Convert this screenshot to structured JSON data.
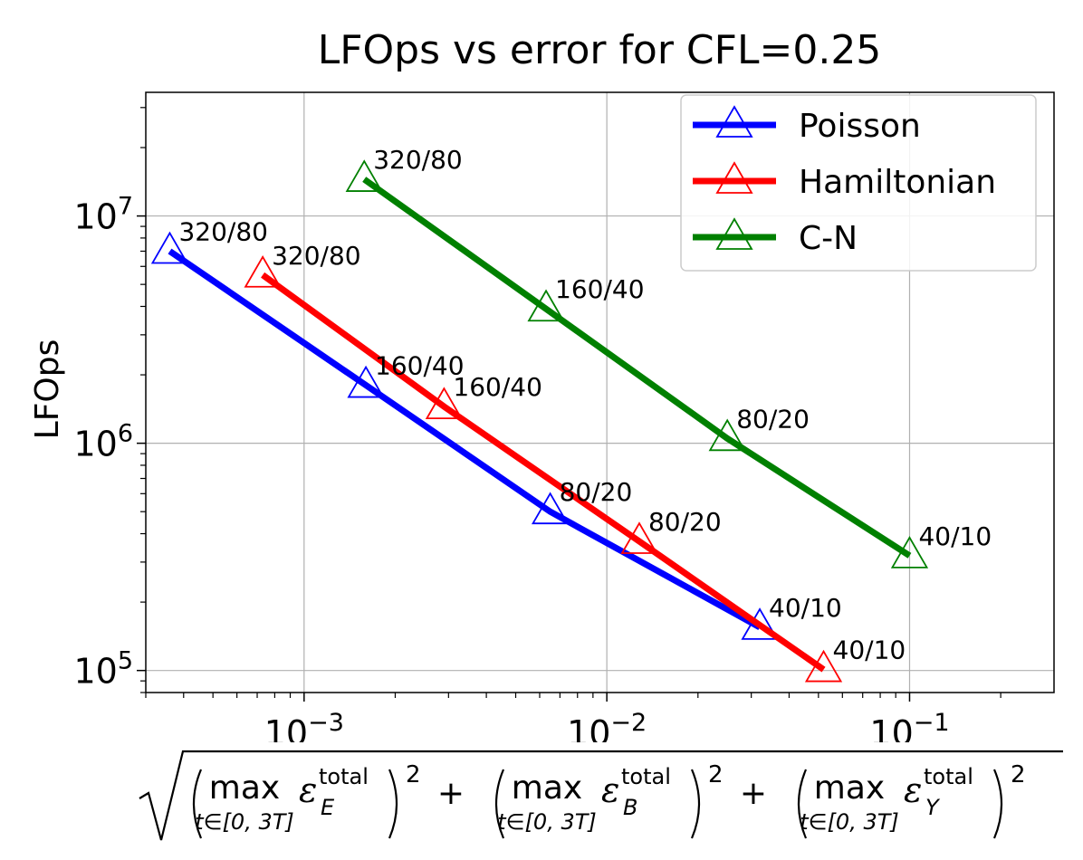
{
  "chart_data": {
    "type": "line",
    "title": "LFOps vs error for CFL=0.25",
    "ylabel": "LFOps",
    "xlabel": "sqrt((max_{t∈[0,3T]} ε_E^total)^2 + (max_{t∈[0,3T]} ε_B^total)^2 + (max_{t∈[0,3T]} ε_Y^total)^2)",
    "xlabel_parts": {
      "max": "max",
      "sub": "t∈[0, 3T]",
      "eps": "ε",
      "sup": "total",
      "components": [
        "E",
        "B",
        "Y"
      ],
      "power": "2",
      "plus": "+"
    },
    "xscale": "log",
    "yscale": "log",
    "xlim": [
      0.0003,
      0.3
    ],
    "ylim": [
      80000,
      35000000
    ],
    "xticks": [
      {
        "value": 0.001,
        "base": "10",
        "exp": "−3"
      },
      {
        "value": 0.01,
        "base": "10",
        "exp": "−2"
      },
      {
        "value": 0.1,
        "base": "10",
        "exp": "−1"
      }
    ],
    "yticks": [
      {
        "value": 100000,
        "base": "10",
        "exp": "5"
      },
      {
        "value": 1000000,
        "base": "10",
        "exp": "6"
      },
      {
        "value": 10000000,
        "base": "10",
        "exp": "7"
      }
    ],
    "grid": true,
    "legend_position": "top-right",
    "series": [
      {
        "name": "Poisson",
        "color": "#0000ff",
        "marker": "triangle",
        "x": [
          0.00036,
          0.0016,
          0.0065,
          0.032
        ],
        "y": [
          7000000,
          1800000,
          500000,
          155000
        ],
        "labels": [
          "320/80",
          "160/40",
          "80/20",
          "40/10"
        ]
      },
      {
        "name": "Hamiltonian",
        "color": "#ff0000",
        "marker": "triangle",
        "x": [
          0.00073,
          0.0029,
          0.0128,
          0.052
        ],
        "y": [
          5500000,
          1450000,
          370000,
          101000
        ],
        "labels": [
          "320/80",
          "160/40",
          "80/20",
          "40/10"
        ]
      },
      {
        "name": "C-N",
        "color": "#008000",
        "marker": "triangle",
        "x": [
          0.00158,
          0.0063,
          0.025,
          0.1
        ],
        "y": [
          14500000,
          3900000,
          1050000,
          320000
        ],
        "labels": [
          "320/80",
          "160/40",
          "80/20",
          "40/10"
        ]
      }
    ]
  }
}
